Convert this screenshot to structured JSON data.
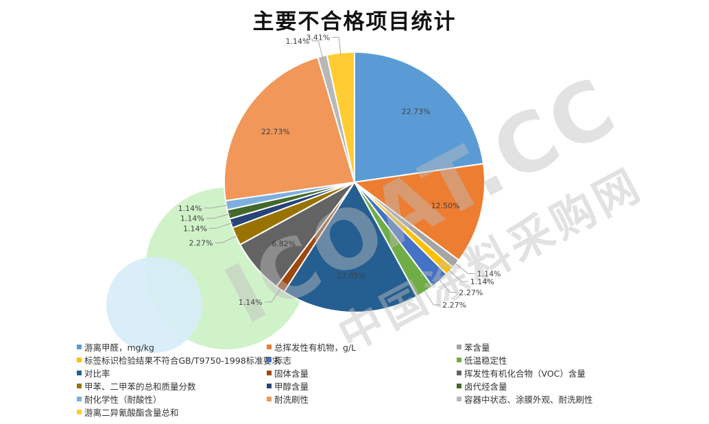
{
  "watermark": {
    "brand": "ICOAT.CC",
    "subtitle": "中国涂料采购网",
    "colors": [
      "#c8f0c0",
      "#d6ecf8",
      "#bfbfbf"
    ]
  },
  "chart_data": {
    "type": "pie",
    "title": "主要不合格项目统计",
    "legend_position": "bottom",
    "slices": [
      {
        "label": "游离甲醛，mg/kg",
        "value": 22.73,
        "value_label": "22.73%",
        "color": "#5b9bd5"
      },
      {
        "label": "总挥发性有机物，g/L",
        "value": 12.5,
        "value_label": "12.50%",
        "color": "#ed7d31"
      },
      {
        "label": "苯含量",
        "value": 1.14,
        "value_label": "1.14%",
        "color": "#a5a5a5"
      },
      {
        "label": "标签标识检验结果不符合GB/T9750-1998标准要求",
        "value": 1.14,
        "value_label": "1.14%",
        "color": "#ffc000"
      },
      {
        "label": "标志",
        "value": 2.27,
        "value_label": "2.27%",
        "color": "#4472c4"
      },
      {
        "label": "低温稳定性",
        "value": 2.27,
        "value_label": "2.27%",
        "color": "#70ad47"
      },
      {
        "label": "对比率",
        "value": 17.05,
        "value_label": "17.05%",
        "color": "#255e91"
      },
      {
        "label": "固体含量",
        "value": 1.14,
        "value_label": "1.14%",
        "color": "#9e480e"
      },
      {
        "label": "挥发性有机化合物（VOC）含量",
        "value": 6.82,
        "value_label": "6.82%",
        "color": "#636363"
      },
      {
        "label": "甲苯、二甲苯的总和质量分数",
        "value": 2.27,
        "value_label": "2.27%",
        "color": "#997300"
      },
      {
        "label": "甲醇含量",
        "value": 1.14,
        "value_label": "1.14%",
        "color": "#264478"
      },
      {
        "label": "卤代烃含量",
        "value": 1.14,
        "value_label": "1.14%",
        "color": "#43682b"
      },
      {
        "label": "耐化学性（耐酸性）",
        "value": 1.14,
        "value_label": "1.14%",
        "color": "#7cafdd"
      },
      {
        "label": "耐洗刷性",
        "value": 22.73,
        "value_label": "22.73%",
        "color": "#f1975a"
      },
      {
        "label": "容器中状态、涂膜外观、耐洗刷性",
        "value": 1.14,
        "value_label": "1.14%",
        "color": "#b7b7b7"
      },
      {
        "label": "游离二异氰酸酯含量总和",
        "value": 3.41,
        "value_label": "3.41%",
        "color": "#ffcd33"
      }
    ]
  }
}
